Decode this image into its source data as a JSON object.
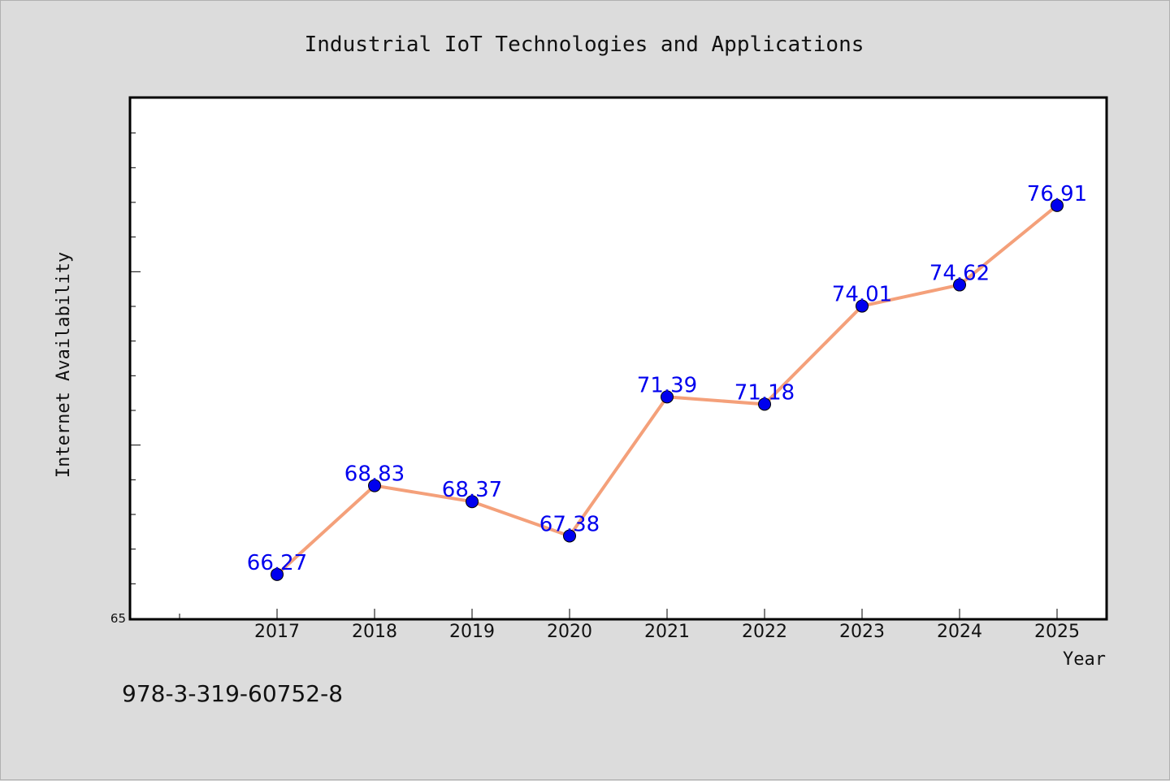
{
  "chart_data": {
    "type": "line",
    "title": "Industrial IoT Technologies and Applications",
    "xlabel": "Year",
    "ylabel": "Internet Availability",
    "categories": [
      "2017",
      "2018",
      "2019",
      "2020",
      "2021",
      "2022",
      "2023",
      "2024",
      "2025"
    ],
    "series": [
      {
        "values": [
          66.27,
          68.83,
          68.37,
          67.38,
          71.39,
          71.18,
          74.01,
          74.62,
          76.91
        ],
        "labels": [
          "66.27",
          "68.83",
          "68.37",
          "67.38",
          "71.39",
          "71.18",
          "74.01",
          "74.62",
          "76.91"
        ],
        "line_color": "#f4a07a",
        "marker_color": "#0000ee"
      }
    ],
    "ylim": [
      65,
      80
    ],
    "ytick_labels": [
      "65"
    ],
    "grid": false,
    "legend": "none"
  },
  "footer": {
    "isbn": "978-3-319-60752-8"
  },
  "colors": {
    "background": "#dcdcdc",
    "plot_area": "#ffffff",
    "axis": "#000000"
  }
}
